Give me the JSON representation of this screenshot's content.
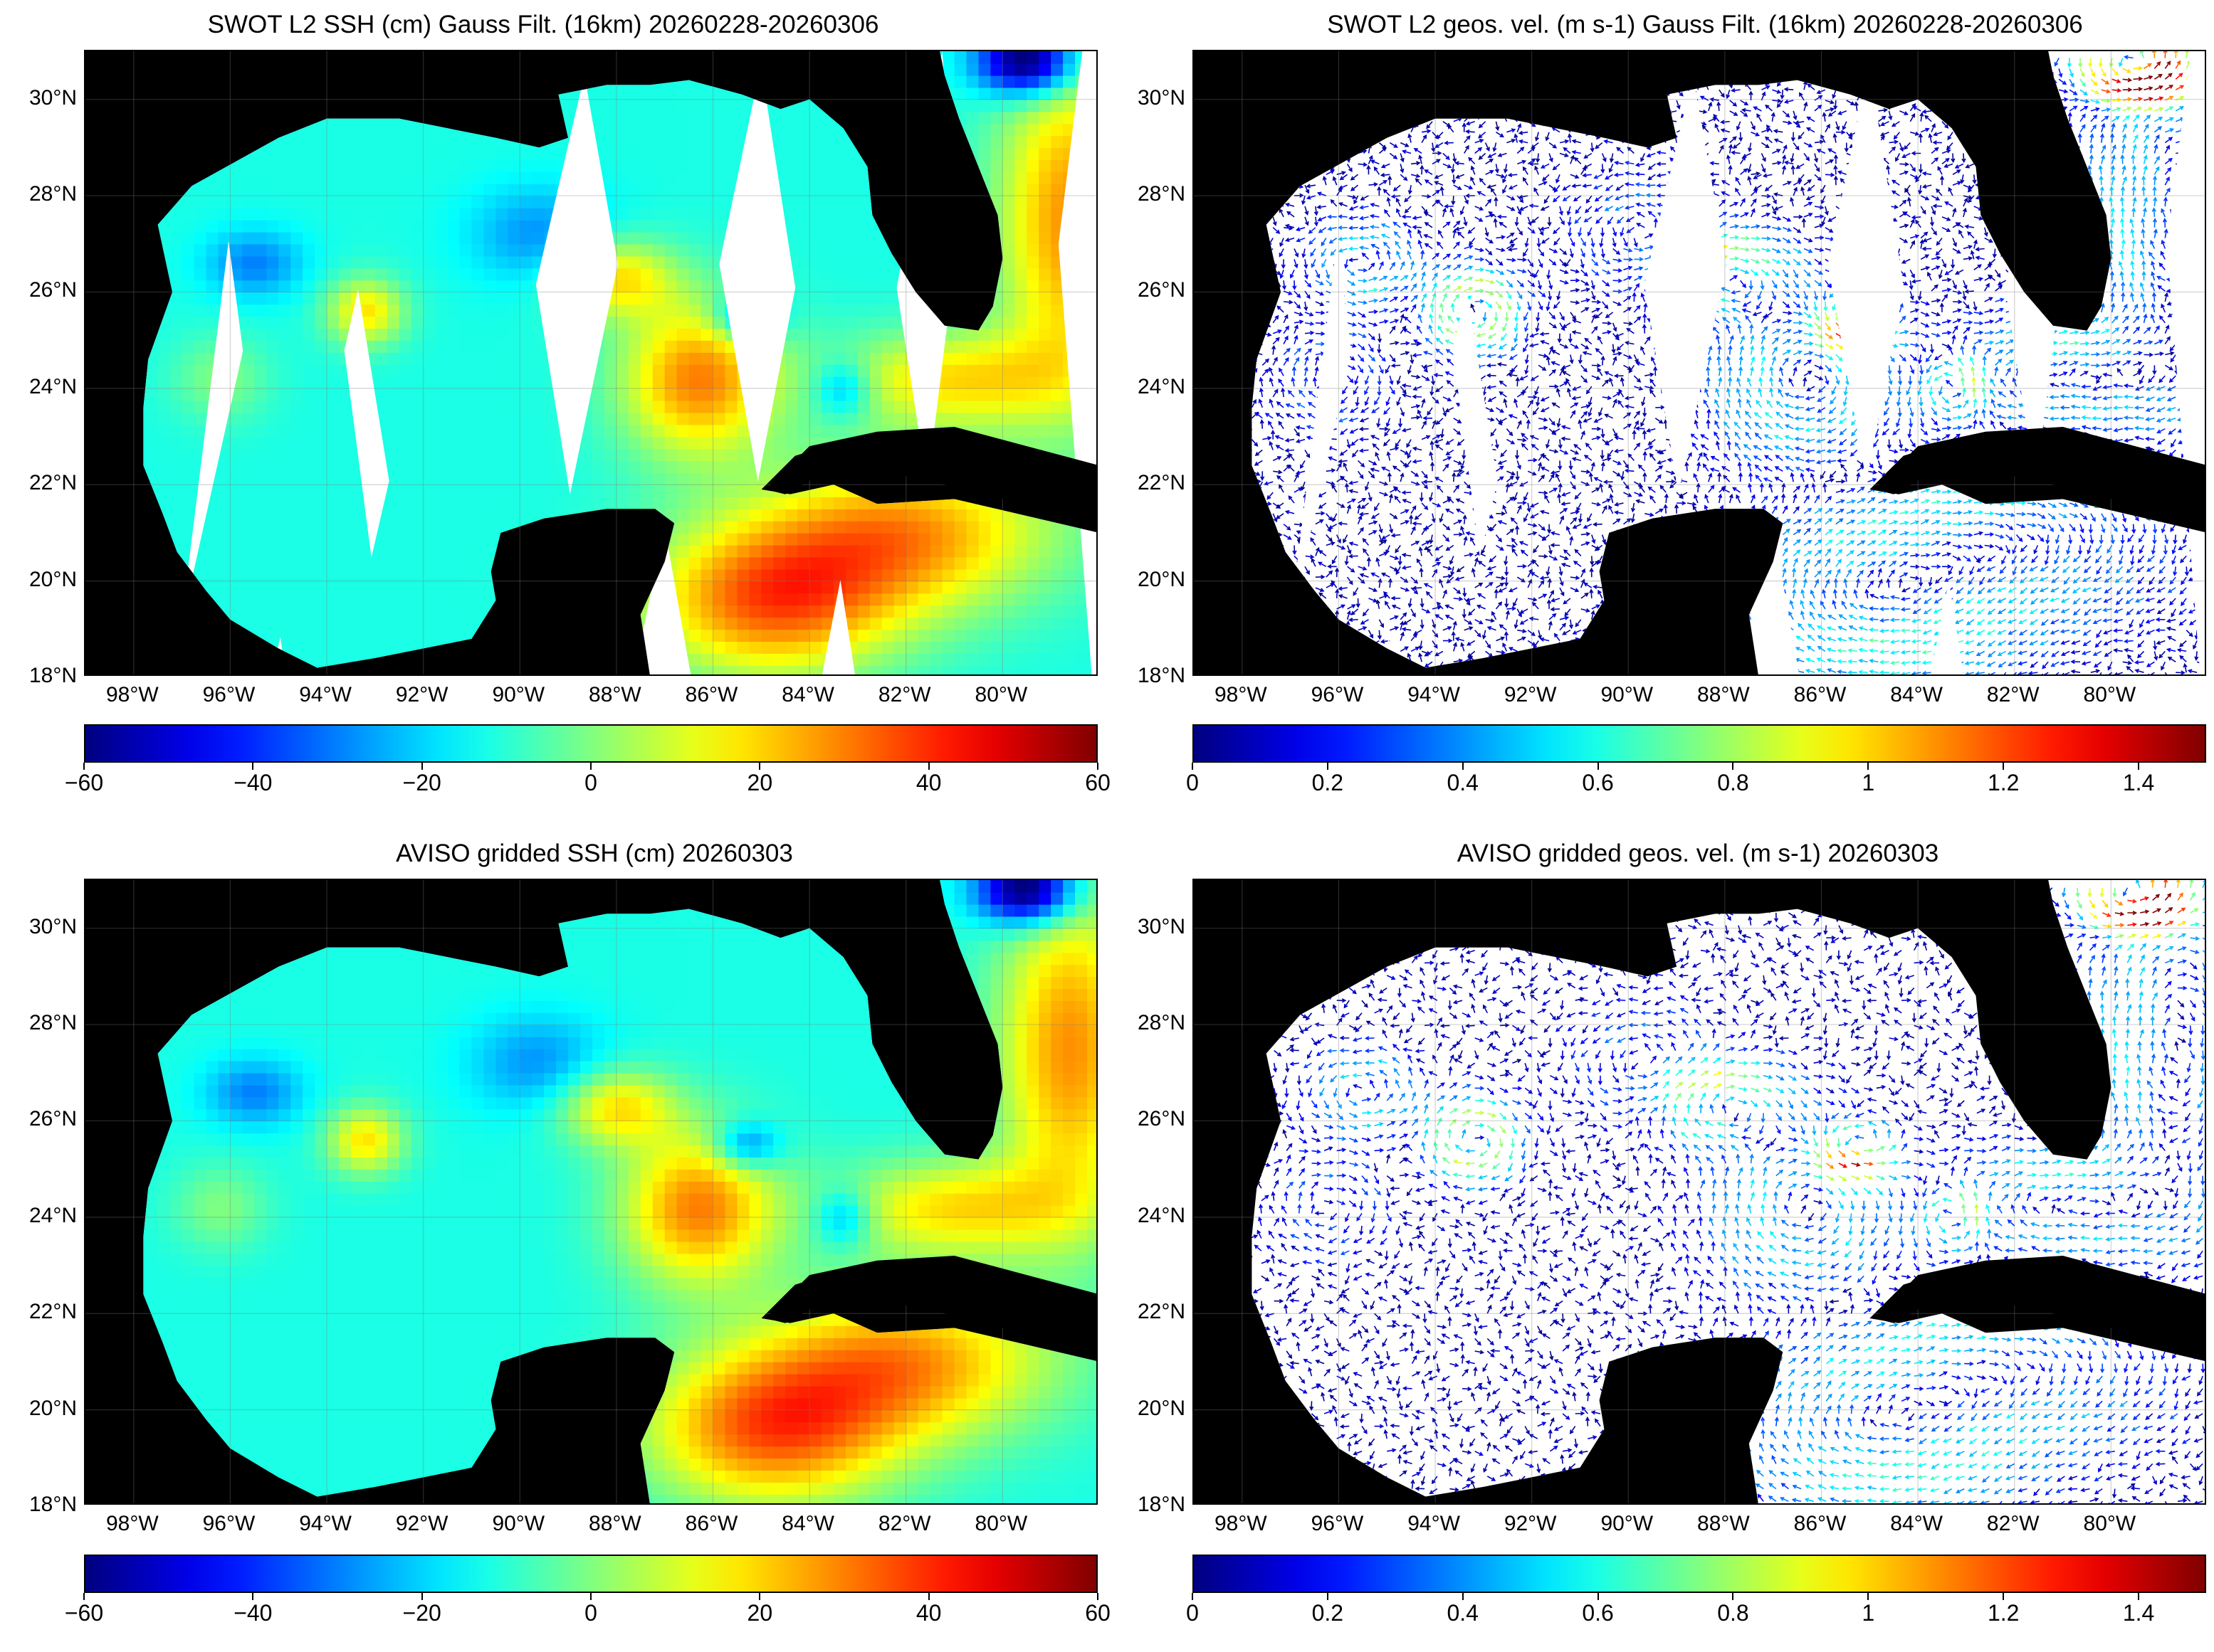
{
  "panels": [
    {
      "title": "SWOT L2 SSH (cm) Gauss Filt. (16km) 20260228-20260306",
      "kind": "swot-ssh",
      "colorbar": [
        "−60",
        "−40",
        "−20",
        "0",
        "20",
        "40",
        "60"
      ]
    },
    {
      "title": "SWOT L2 geos. vel. (m s-1) Gauss Filt. (16km) 20260228-20260306",
      "kind": "swot-vel",
      "colorbar": [
        "0",
        "0.2",
        "0.4",
        "0.6",
        "0.8",
        "1",
        "1.2",
        "1.4"
      ]
    },
    {
      "title": "AVISO gridded SSH (cm) 20260303",
      "kind": "aviso-ssh",
      "colorbar": [
        "−60",
        "−40",
        "−20",
        "0",
        "20",
        "40",
        "60"
      ]
    },
    {
      "title": "AVISO gridded geos. vel. (m s-1)  20260303",
      "kind": "aviso-vel",
      "colorbar": [
        "0",
        "0.2",
        "0.4",
        "0.6",
        "0.8",
        "1",
        "1.2",
        "1.4"
      ]
    }
  ],
  "lon_labels": [
    "98°W",
    "96°W",
    "94°W",
    "92°W",
    "90°W",
    "88°W",
    "86°W",
    "84°W",
    "82°W",
    "80°W"
  ],
  "lat_labels": [
    "30°N",
    "28°N",
    "26°N",
    "24°N",
    "22°N",
    "20°N",
    "18°N"
  ],
  "map_extent": {
    "lon": [
      -99,
      -78
    ],
    "lat": [
      18,
      31
    ]
  },
  "colormap": "jet",
  "ssh_range_cm": [
    -60,
    60
  ],
  "vel_range_ms": [
    0,
    1.5
  ],
  "land_color": "#000000",
  "ocean_nodata_color": "#ffffff"
}
